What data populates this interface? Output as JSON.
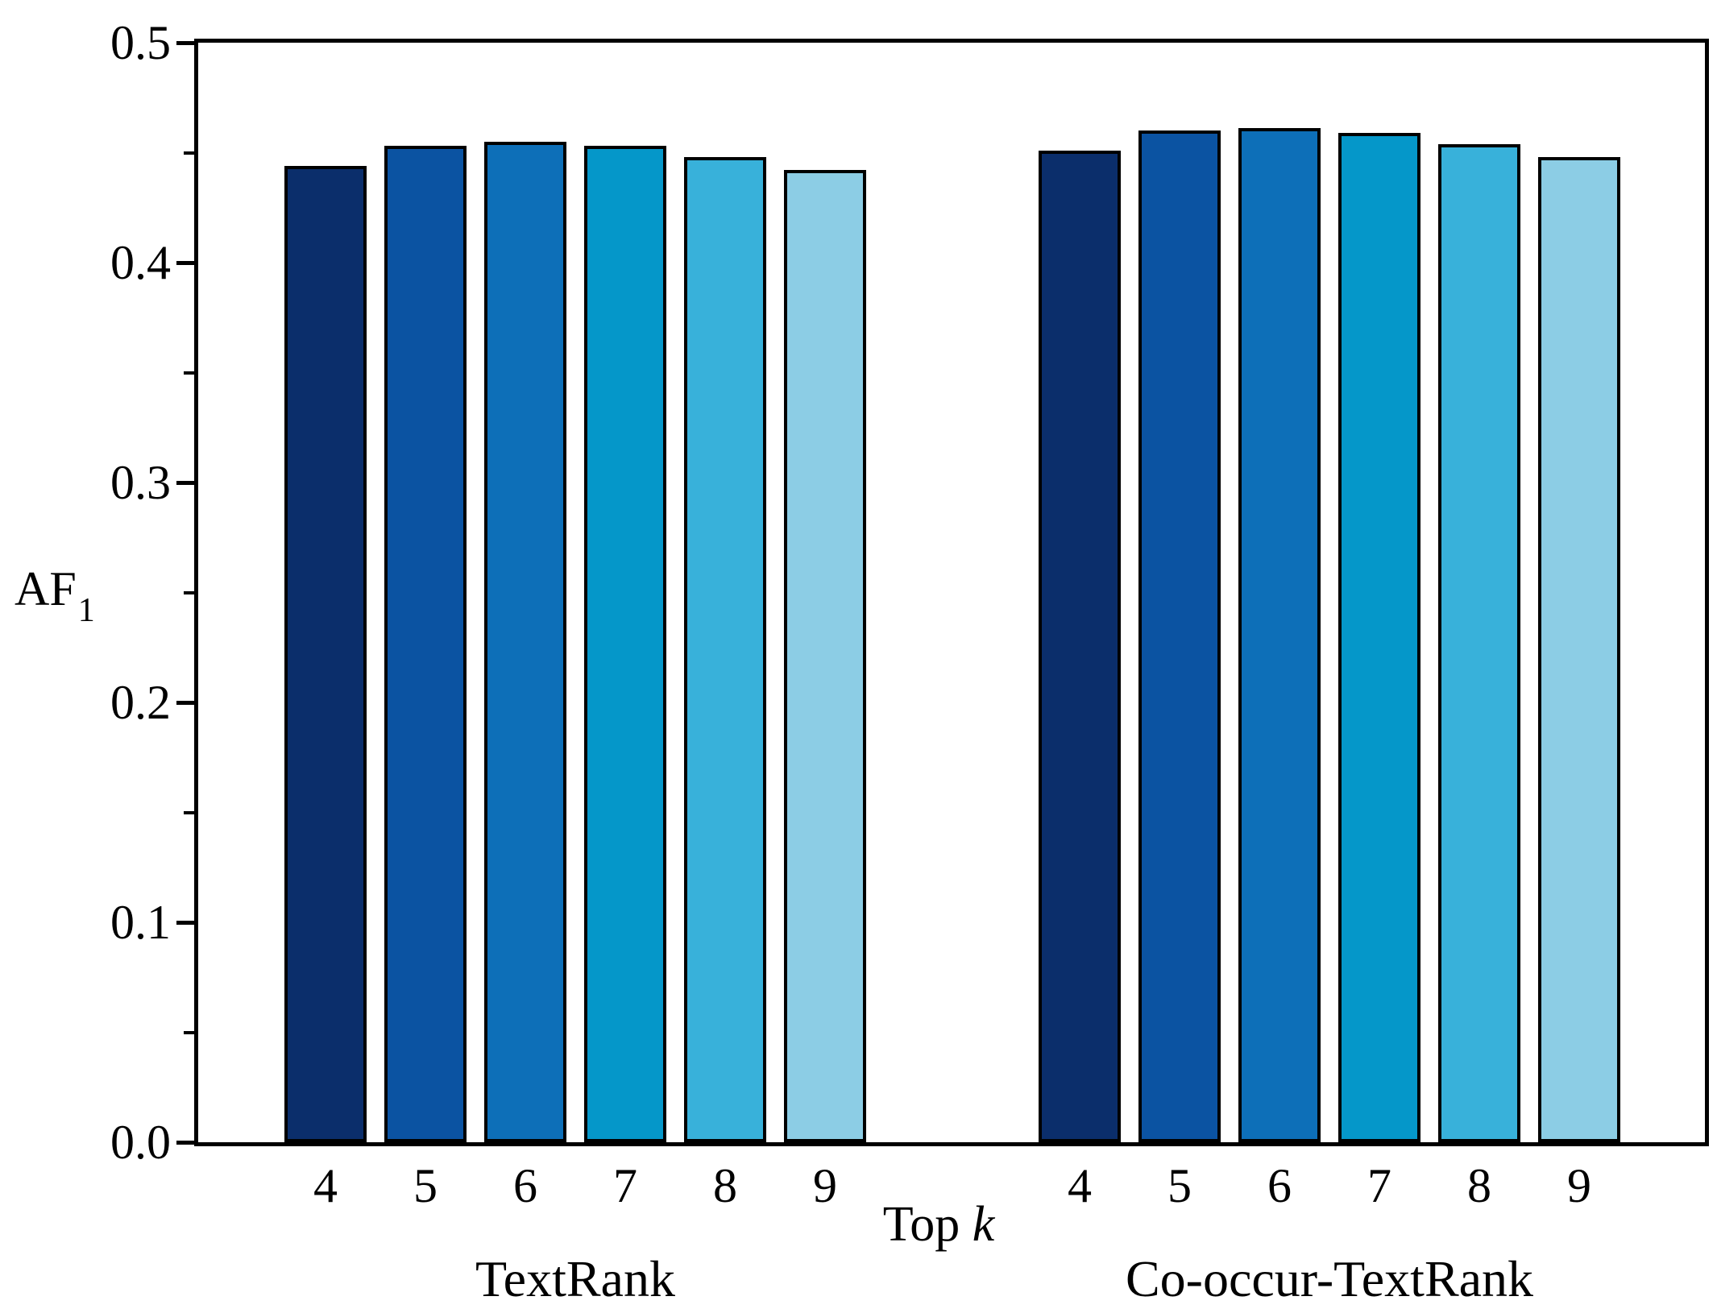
{
  "figure": {
    "background": "#ffffff",
    "axis_color": "#000000"
  },
  "chart_data": {
    "type": "bar",
    "title": "",
    "ylabel_base": "AF",
    "ylabel_sub": "1",
    "xlabel_prefix": "Top",
    "xlabel_k": "k",
    "ylim": [
      0,
      0.5
    ],
    "yticks_major": [
      0.0,
      0.1,
      0.2,
      0.3,
      0.4,
      0.5
    ],
    "ytick_labels": [
      "0.0",
      "0.1",
      "0.2",
      "0.3",
      "0.4",
      "0.5"
    ],
    "yticks_minor": [
      0.05,
      0.15,
      0.25,
      0.35,
      0.45
    ],
    "categories": [
      "4",
      "5",
      "6",
      "7",
      "8",
      "9"
    ],
    "groups": [
      {
        "name": "TextRank",
        "values": [
          0.444,
          0.453,
          0.455,
          0.453,
          0.448,
          0.442
        ]
      },
      {
        "name": "Co-occur-TextRank",
        "values": [
          0.451,
          0.46,
          0.461,
          0.459,
          0.454,
          0.448
        ]
      }
    ],
    "bar_colors": [
      "#0b2e6b",
      "#0b53a2",
      "#0d6fb8",
      "#0597c9",
      "#38b1da",
      "#8ccde5"
    ],
    "bar_edge_color": "#000000",
    "grid": false,
    "legend": null
  }
}
